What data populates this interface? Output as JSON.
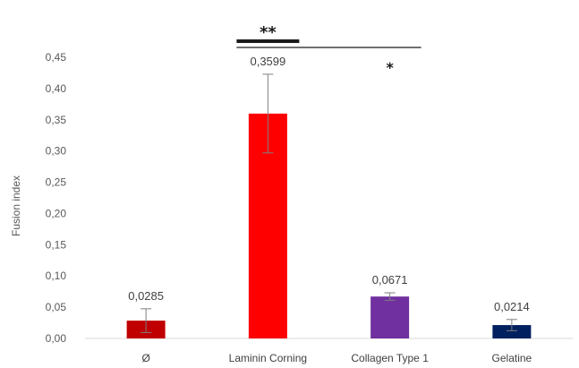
{
  "chart_data": {
    "type": "bar",
    "ylabel": "Fusion index",
    "ylim": [
      0,
      0.45
    ],
    "yticks": [
      0,
      0.05,
      0.1,
      0.15,
      0.2,
      0.25,
      0.3,
      0.35,
      0.4,
      0.45
    ],
    "ytick_labels": [
      "0,00",
      "0,05",
      "0,10",
      "0,15",
      "0,20",
      "0,25",
      "0,30",
      "0,35",
      "0,40",
      "0,45"
    ],
    "categories": [
      "Ø",
      "Laminin Corning",
      "Collagen Type 1",
      "Gelatine"
    ],
    "values": [
      0.0285,
      0.3599,
      0.0671,
      0.0214
    ],
    "value_labels": [
      "0,0285",
      "0,3599",
      "0,0671",
      "0,0214"
    ],
    "errors": [
      0.019,
      0.063,
      0.006,
      0.009
    ],
    "colors": [
      "#c00000",
      "#ff0000",
      "#7030a0",
      "#002060"
    ],
    "grid": false,
    "annotations": [
      {
        "text": "**",
        "from": "Laminin Corning",
        "to": "Laminin Corning"
      },
      {
        "text": "*",
        "from": "Laminin Corning",
        "to": "Collagen Type 1"
      }
    ]
  }
}
